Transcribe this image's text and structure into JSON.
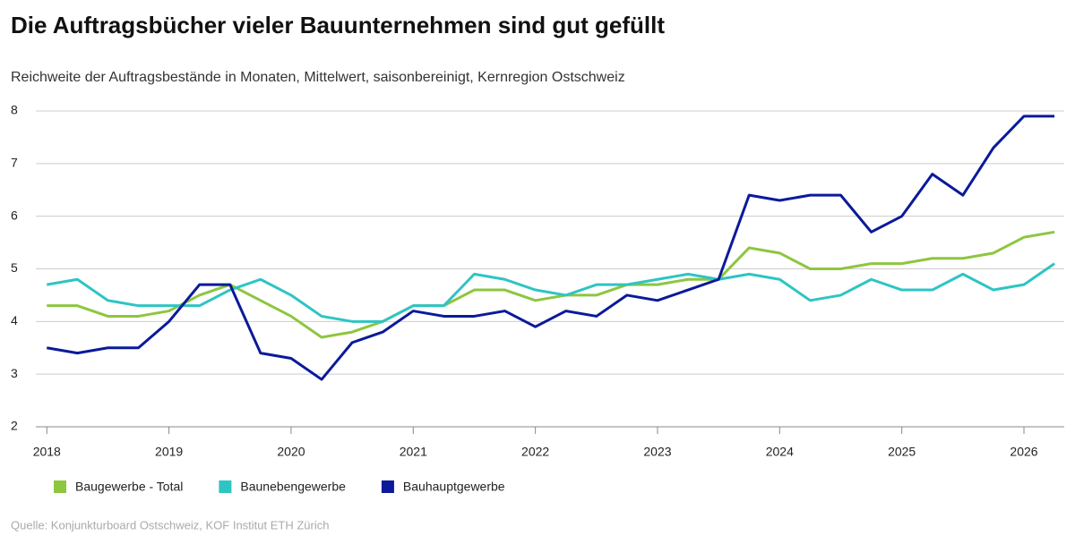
{
  "chart_data": {
    "type": "line",
    "title": "Die Auftragsbücher vieler Bauunternehmen sind gut gefüllt",
    "subtitle": "Reichweite der Auftragsbestände in Monaten, Mittelwert, saisonbereinigt, Kernregion Ostschweiz",
    "source": "Quelle: Konjunkturboard Ostschweiz, KOF Institut ETH Zürich",
    "x": [
      2018,
      2018.25,
      2018.5,
      2018.75,
      2019,
      2019.25,
      2019.5,
      2019.75,
      2020,
      2020.25,
      2020.5,
      2020.75,
      2021,
      2021.25,
      2021.5,
      2021.75,
      2022,
      2022.25,
      2022.5,
      2022.75,
      2023,
      2023.25,
      2023.5,
      2023.75,
      2024,
      2024.25,
      2024.5,
      2024.75,
      2025,
      2025.25,
      2025.5,
      2025.75,
      2026,
      2026.25
    ],
    "series": [
      {
        "name": "Baugewerbe - Total",
        "color": "#8dc63f",
        "values": [
          4.3,
          4.3,
          4.1,
          4.1,
          4.2,
          4.5,
          4.7,
          4.4,
          4.1,
          3.7,
          3.8,
          4.0,
          4.3,
          4.3,
          4.6,
          4.6,
          4.4,
          4.5,
          4.5,
          4.7,
          4.7,
          4.8,
          4.8,
          5.4,
          5.3,
          5.0,
          5.0,
          5.1,
          5.1,
          5.2,
          5.2,
          5.3,
          5.6,
          5.7
        ]
      },
      {
        "name": "Baunebengewerbe",
        "color": "#2ec4c4",
        "values": [
          4.7,
          4.8,
          4.4,
          4.3,
          4.3,
          4.3,
          4.6,
          4.8,
          4.5,
          4.1,
          4.0,
          4.0,
          4.3,
          4.3,
          4.9,
          4.8,
          4.6,
          4.5,
          4.7,
          4.7,
          4.8,
          4.9,
          4.8,
          4.9,
          4.8,
          4.4,
          4.5,
          4.8,
          4.6,
          4.6,
          4.9,
          4.6,
          4.7,
          5.1
        ]
      },
      {
        "name": "Bauhauptgewerbe",
        "color": "#0a1a9a",
        "values": [
          3.5,
          3.4,
          3.5,
          3.5,
          4.0,
          4.7,
          4.7,
          3.4,
          3.3,
          2.9,
          3.6,
          3.8,
          4.2,
          4.1,
          4.1,
          4.2,
          3.9,
          4.2,
          4.1,
          4.5,
          4.4,
          4.6,
          4.8,
          6.4,
          6.3,
          6.4,
          6.4,
          5.7,
          6.0,
          6.8,
          6.4,
          7.3,
          7.9,
          7.9
        ]
      }
    ],
    "xlim": [
      2017.91,
      2026.33
    ],
    "xticks": [
      2018,
      2019,
      2020,
      2021,
      2022,
      2023,
      2024,
      2025,
      2026
    ],
    "ylim": [
      2,
      8
    ],
    "yticks": [
      2,
      3,
      4,
      5,
      6,
      7,
      8
    ],
    "grid": true
  }
}
